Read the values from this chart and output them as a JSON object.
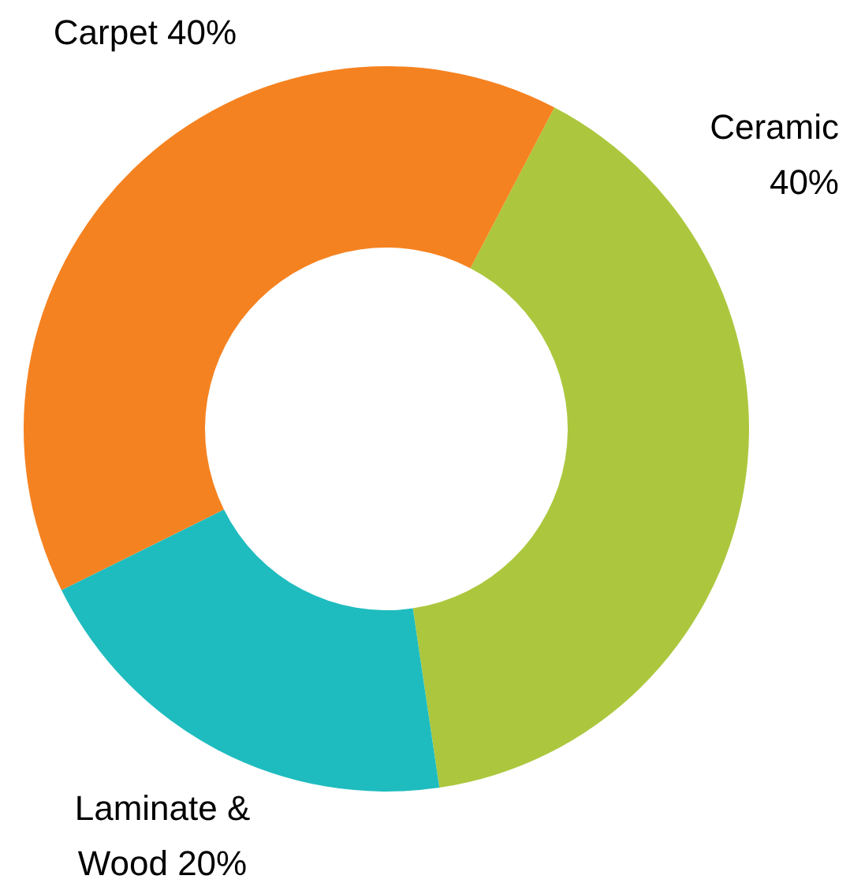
{
  "chart_data": {
    "type": "donut",
    "categories": [
      "Ceramic",
      "Laminate & Wood",
      "Carpet"
    ],
    "values": [
      40,
      20,
      40
    ],
    "colors": [
      "#acc73e",
      "#1fbcbf",
      "#f58220"
    ],
    "value_labels": [
      "40%",
      "20%",
      "40%"
    ]
  }
}
